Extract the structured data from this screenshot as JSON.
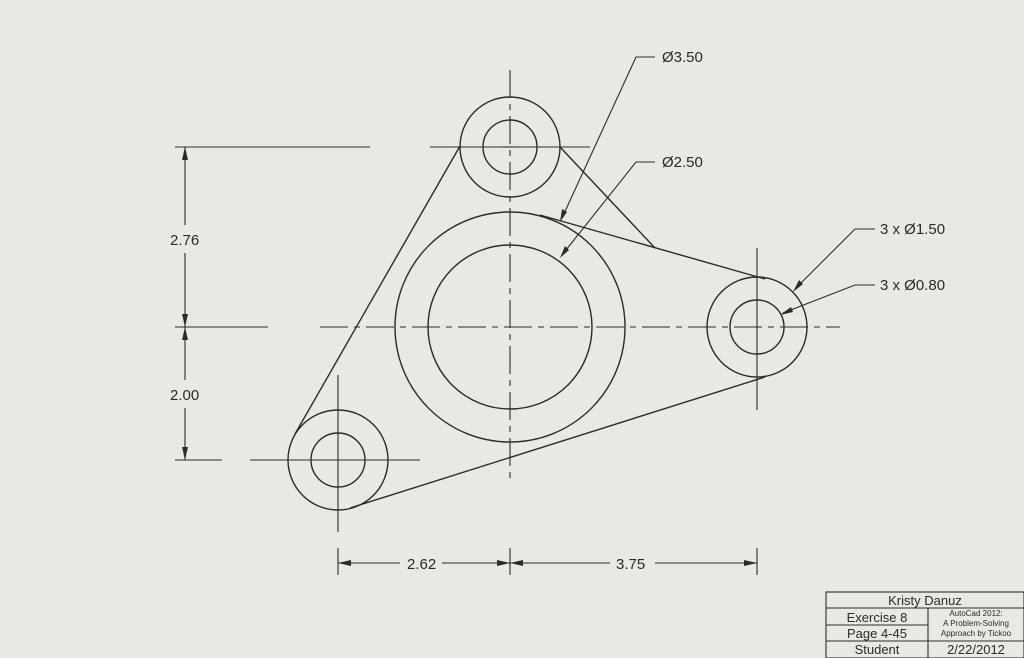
{
  "dimensions": {
    "vertical_top": "2.76",
    "vertical_bottom": "2.00",
    "horizontal_left": "2.62",
    "horizontal_right": "3.75"
  },
  "callouts": {
    "outer_center": "Ø3.50",
    "inner_center": "Ø2.50",
    "outer_small": "3 x Ø1.50",
    "inner_small": "3 x Ø0.80"
  },
  "title_block": {
    "name": "Kristy Danuz",
    "exercise": "Exercise 8",
    "page": "Page 4-45",
    "role": "Student",
    "book_line1": "AutoCad 2012:",
    "book_line2": "A Problem-Solving",
    "book_line3": "Approach by Tickoo",
    "date": "2/22/2012"
  }
}
